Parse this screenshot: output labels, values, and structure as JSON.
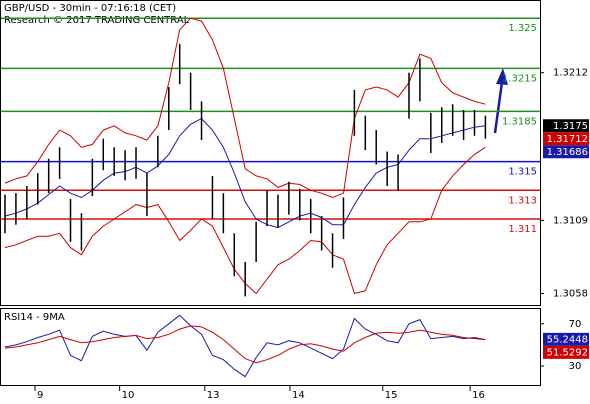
{
  "chart_data": [
    {
      "type": "ohlc",
      "title": "GBP/USD - 30min - 07:16:18 (CET)",
      "subtitle": "Research © 2017 TRADING CENTRAL",
      "xlim": [
        0,
        49
      ],
      "xticks": [
        {
          "value": 2.75,
          "label": "9"
        },
        {
          "value": 10.5,
          "label": "10"
        },
        {
          "value": 18.3,
          "label": "13"
        },
        {
          "value": 26.1,
          "label": "14"
        },
        {
          "value": 34.6,
          "label": "15"
        },
        {
          "value": 42.6,
          "label": "16"
        }
      ],
      "ylim": [
        1.305,
        1.3262
      ],
      "yticks": [
        1.3212,
        1.3109,
        1.3058
      ],
      "color": "#000000",
      "high": [
        1.3127,
        1.3128,
        1.3133,
        1.3142,
        1.3152,
        1.316,
        1.3124,
        1.3114,
        1.3152,
        1.3166,
        1.316,
        1.3158,
        1.316,
        1.3142,
        1.3168,
        1.3202,
        1.3232,
        1.3212,
        1.3192,
        1.314,
        1.3128,
        1.31,
        1.308,
        1.3108,
        1.313,
        1.3127,
        1.3136,
        1.3131,
        1.3124,
        1.3112,
        1.31,
        1.3125,
        1.32,
        1.3182,
        1.3172,
        1.3157,
        1.3155,
        1.3212,
        1.3222,
        1.3184,
        1.3188,
        1.319,
        1.3186,
        1.3186,
        1.3182
      ],
      "low": [
        1.31,
        1.3106,
        1.311,
        1.312,
        1.3128,
        1.3138,
        1.3094,
        1.3088,
        1.3126,
        1.3144,
        1.314,
        1.3137,
        1.3138,
        1.3112,
        1.3146,
        1.3172,
        1.3204,
        1.3186,
        1.3165,
        1.311,
        1.31,
        1.307,
        1.3056,
        1.308,
        1.3105,
        1.3104,
        1.3113,
        1.3109,
        1.31,
        1.3088,
        1.3076,
        1.3096,
        1.3168,
        1.3158,
        1.3148,
        1.3133,
        1.313,
        1.318,
        1.3192,
        1.3156,
        1.3163,
        1.3168,
        1.3165,
        1.3168,
        1.3166
      ],
      "series": [
        {
          "color": "#d00000",
          "values": [
            1.3135,
            1.3138,
            1.314,
            1.315,
            1.3162,
            1.3172,
            1.3168,
            1.316,
            1.3162,
            1.3172,
            1.3175,
            1.317,
            1.3168,
            1.3165,
            1.3175,
            1.3205,
            1.3242,
            1.325,
            1.3248,
            1.3235,
            1.3215,
            1.318,
            1.3145,
            1.314,
            1.3138,
            1.3132,
            1.3135,
            1.3134,
            1.313,
            1.3128,
            1.3125,
            1.3128,
            1.318,
            1.32,
            1.3202,
            1.32,
            1.3195,
            1.3205,
            1.3225,
            1.3222,
            1.3205,
            1.3198,
            1.3195,
            1.3192,
            1.319
          ]
        },
        {
          "color": "#1a1aa8",
          "values": [
            1.3112,
            1.3114,
            1.3117,
            1.3121,
            1.3127,
            1.3133,
            1.3128,
            1.3125,
            1.313,
            1.3137,
            1.3142,
            1.3143,
            1.3146,
            1.3142,
            1.3147,
            1.3155,
            1.3168,
            1.3176,
            1.318,
            1.3172,
            1.316,
            1.3142,
            1.3122,
            1.311,
            1.3106,
            1.3104,
            1.3108,
            1.3112,
            1.3114,
            1.3111,
            1.3106,
            1.3106,
            1.312,
            1.3132,
            1.3142,
            1.3146,
            1.3148,
            1.3158,
            1.3166,
            1.3166,
            1.3168,
            1.317,
            1.3172,
            1.3174,
            1.3175
          ]
        },
        {
          "color": "#d00000",
          "values": [
            1.309,
            1.3092,
            1.3095,
            1.3098,
            1.3098,
            1.31,
            1.309,
            1.3085,
            1.3098,
            1.3105,
            1.311,
            1.3115,
            1.312,
            1.3118,
            1.312,
            1.3108,
            1.3095,
            1.3102,
            1.311,
            1.3105,
            1.309,
            1.3075,
            1.3065,
            1.3058,
            1.3068,
            1.3078,
            1.3082,
            1.3088,
            1.3095,
            1.3094,
            1.3085,
            1.3082,
            1.3058,
            1.306,
            1.3078,
            1.3092,
            1.31,
            1.3108,
            1.3108,
            1.311,
            1.313,
            1.314,
            1.3148,
            1.3155,
            1.316
          ]
        }
      ],
      "levels": [
        {
          "value": 1.325,
          "color": "#1f8f1f"
        },
        {
          "value": 1.3215,
          "color": "#1f8f1f"
        },
        {
          "value": 1.3185,
          "color": "#1f8f1f"
        },
        {
          "value": 1.315,
          "color": "#1010d0"
        },
        {
          "value": 1.313,
          "color": "#d01010"
        },
        {
          "value": 1.311,
          "color": "#d01010"
        }
      ],
      "markers": [
        {
          "value": 1.3175,
          "color": "#000000"
        },
        {
          "value": 1.31712,
          "color": "#d00000"
        },
        {
          "value": 1.31686,
          "color": "#1a1aa8"
        }
      ]
    },
    {
      "type": "line",
      "title": "RSI14 - 9MA",
      "xlim": [
        0,
        49
      ],
      "ylim": [
        12,
        84
      ],
      "yticks": [
        70,
        30
      ],
      "series": [
        {
          "color": "#1a1aa8",
          "values": [
            48,
            50,
            53,
            57,
            60,
            64,
            40,
            35,
            58,
            63,
            60,
            58,
            59,
            45,
            62,
            70,
            78,
            68,
            60,
            40,
            36,
            27,
            20,
            38,
            52,
            50,
            54,
            52,
            47,
            42,
            37,
            46,
            75,
            65,
            60,
            54,
            52,
            70,
            74,
            56,
            57,
            58,
            56,
            57,
            55
          ]
        },
        {
          "color": "#d00000",
          "values": [
            47,
            48,
            50,
            52,
            55,
            58,
            55,
            52,
            53,
            55,
            57,
            58,
            59,
            56,
            57,
            60,
            65,
            68,
            67,
            62,
            55,
            46,
            37,
            33,
            36,
            40,
            46,
            50,
            51,
            49,
            46,
            44,
            52,
            57,
            61,
            62,
            61,
            62,
            64,
            62,
            60,
            59,
            57,
            56,
            55
          ]
        }
      ],
      "markers": [
        {
          "value": 55.2448,
          "color": "#1a1aa8"
        },
        {
          "value": 51.5292,
          "color": "#d00000"
        }
      ]
    }
  ]
}
